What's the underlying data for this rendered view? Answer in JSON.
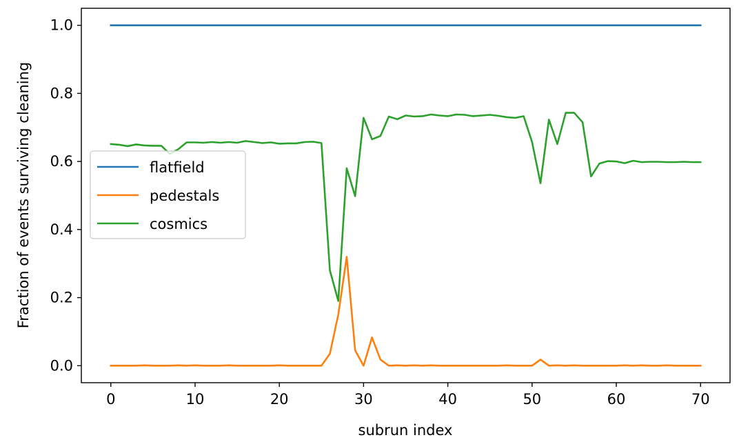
{
  "chart_data": {
    "type": "line",
    "title": "",
    "xlabel": "subrun index",
    "ylabel": "Fraction of events surviving cleaning",
    "xlim": [
      -3.5,
      73.5
    ],
    "ylim": [
      -0.05,
      1.05
    ],
    "xticks": [
      0,
      10,
      20,
      30,
      40,
      50,
      60,
      70
    ],
    "yticks": [
      0.0,
      0.2,
      0.4,
      0.6,
      0.8,
      1.0
    ],
    "xtick_labels": [
      "0",
      "10",
      "20",
      "30",
      "40",
      "50",
      "60",
      "70"
    ],
    "ytick_labels": [
      "0.0",
      "0.2",
      "0.4",
      "0.6",
      "0.8",
      "1.0"
    ],
    "grid": false,
    "legend_position": "center-left",
    "x": [
      0,
      1,
      2,
      3,
      4,
      5,
      6,
      7,
      8,
      9,
      10,
      11,
      12,
      13,
      14,
      15,
      16,
      17,
      18,
      19,
      20,
      21,
      22,
      23,
      24,
      25,
      26,
      27,
      28,
      29,
      30,
      31,
      32,
      33,
      34,
      35,
      36,
      37,
      38,
      39,
      40,
      41,
      42,
      43,
      44,
      45,
      46,
      47,
      48,
      49,
      50,
      51,
      52,
      53,
      54,
      55,
      56,
      57,
      58,
      59,
      60,
      61,
      62,
      63,
      64,
      65,
      66,
      67,
      68,
      69,
      70
    ],
    "series": [
      {
        "name": "flatfield",
        "color": "#1f77b4",
        "values": [
          1,
          1,
          1,
          1,
          1,
          1,
          1,
          1,
          1,
          1,
          1,
          1,
          1,
          1,
          1,
          1,
          1,
          1,
          1,
          1,
          1,
          1,
          1,
          1,
          1,
          1,
          1,
          1,
          1,
          1,
          1,
          1,
          1,
          1,
          1,
          1,
          1,
          1,
          1,
          1,
          1,
          1,
          1,
          1,
          1,
          1,
          1,
          1,
          1,
          1,
          1,
          1,
          1,
          1,
          1,
          1,
          1,
          1,
          1,
          1,
          1,
          1,
          1,
          1,
          1,
          1,
          1,
          1,
          1,
          1,
          1
        ]
      },
      {
        "name": "pedestals",
        "color": "#ff7f0e",
        "values": [
          0,
          0,
          0,
          0,
          0.001,
          0,
          0,
          0,
          0.001,
          0,
          0.001,
          0,
          0,
          0,
          0.001,
          0,
          0,
          0,
          0,
          0,
          0.001,
          0,
          0,
          0,
          0,
          0,
          0.035,
          0.15,
          0.32,
          0.045,
          0,
          0.083,
          0.018,
          0,
          0.001,
          0,
          0.001,
          0,
          0.001,
          0,
          0,
          0,
          0,
          0,
          0,
          0,
          0,
          0.001,
          0,
          0,
          0,
          0.018,
          0,
          0.001,
          0,
          0.001,
          0,
          0,
          0,
          0,
          0,
          0.001,
          0,
          0.001,
          0,
          0,
          0.001,
          0,
          0,
          0,
          0
        ]
      },
      {
        "name": "cosmics",
        "color": "#2ca02c",
        "values": [
          0.651,
          0.649,
          0.645,
          0.65,
          0.647,
          0.646,
          0.646,
          0.622,
          0.636,
          0.656,
          0.656,
          0.655,
          0.657,
          0.655,
          0.657,
          0.655,
          0.66,
          0.657,
          0.654,
          0.656,
          0.652,
          0.653,
          0.653,
          0.657,
          0.658,
          0.654,
          0.28,
          0.19,
          0.58,
          0.498,
          0.728,
          0.665,
          0.675,
          0.732,
          0.724,
          0.735,
          0.732,
          0.733,
          0.738,
          0.735,
          0.733,
          0.738,
          0.737,
          0.733,
          0.735,
          0.737,
          0.734,
          0.73,
          0.728,
          0.733,
          0.657,
          0.536,
          0.723,
          0.651,
          0.743,
          0.743,
          0.715,
          0.556,
          0.594,
          0.601,
          0.6,
          0.595,
          0.602,
          0.598,
          0.599,
          0.599,
          0.598,
          0.598,
          0.599,
          0.598,
          0.598
        ]
      }
    ]
  }
}
